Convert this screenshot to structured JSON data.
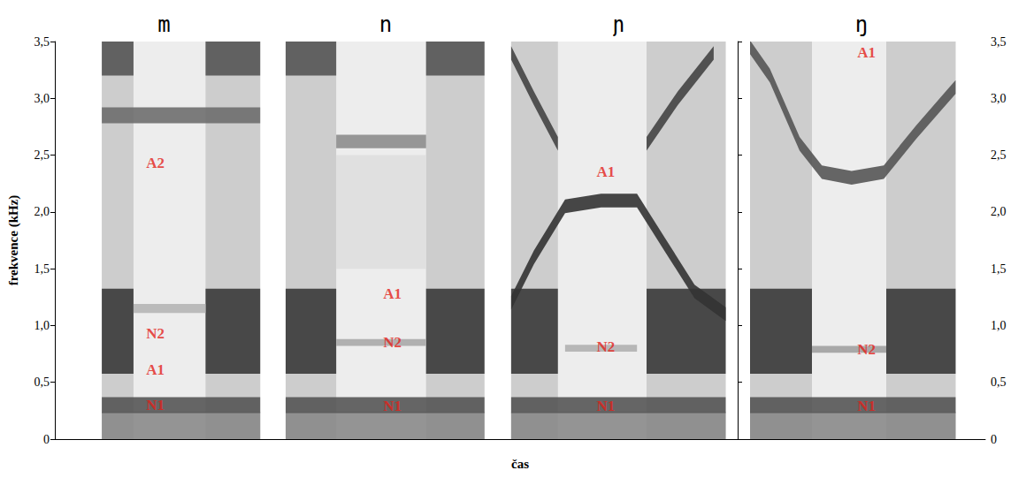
{
  "chart_data": {
    "type": "spectrogram",
    "ylabel": "frekvence (kHz)",
    "xlabel": "čas",
    "ylim": [
      0,
      3.5
    ],
    "yticks": [
      0,
      {
        "value": 0.5,
        "label": "0,5"
      },
      {
        "value": 1,
        "label": "1,0"
      },
      {
        "value": 1.5,
        "label": "1,5"
      },
      {
        "value": 2,
        "label": "2,0"
      },
      {
        "value": 2.5,
        "label": "2,5"
      },
      {
        "value": 3,
        "label": "3,0"
      },
      {
        "value": 3.5,
        "label": "3,5"
      }
    ],
    "xlim": [
      0,
      100
    ],
    "tick_labels": "y",
    "grid": false,
    "panels": [
      {
        "title": "m",
        "bands": [
          {
            "x": [
              21.5,
              94
            ],
            "values": [
              1.75,
              1.75
            ],
            "bandwidth": 3.5,
            "color": "#ebebeb"
          },
          {
            "x": [
              21.5,
              36
            ],
            "values": [
              1.75,
              1.75
            ],
            "bandwidth": 3.5,
            "color": "#c9c9c9"
          },
          {
            "x": [
              69,
              94
            ],
            "values": [
              1.75,
              1.75
            ],
            "bandwidth": 3.5,
            "color": "#c9c9c9"
          },
          {
            "x": [
              21.5,
              94
            ],
            "values": [
              0.12,
              0.12
            ],
            "bandwidth": 0.24,
            "color": "#8a8a8a"
          },
          {
            "x": [
              21.5,
              94
            ],
            "values": [
              0.3,
              0.3
            ],
            "bandwidth": 0.14,
            "color": "#555555"
          },
          {
            "x": [
              21.5,
              36
            ],
            "values": [
              0.95,
              0.95
            ],
            "bandwidth": 0.75,
            "color": "#3a3a3a"
          },
          {
            "x": [
              69,
              94
            ],
            "values": [
              0.95,
              0.95
            ],
            "bandwidth": 0.75,
            "color": "#3a3a3a"
          },
          {
            "x": [
              21.5,
              94
            ],
            "values": [
              2.85,
              2.85
            ],
            "bandwidth": 0.14,
            "color": "#6e6e6e"
          },
          {
            "x": [
              21.5,
              36
            ],
            "values": [
              3.35,
              3.35
            ],
            "bandwidth": 0.3,
            "color": "#555555"
          },
          {
            "x": [
              69,
              94
            ],
            "values": [
              3.35,
              3.35
            ],
            "bandwidth": 0.3,
            "color": "#555555"
          },
          {
            "x": [
              36,
              69
            ],
            "values": [
              1.15,
              1.15
            ],
            "bandwidth": 0.08,
            "color": "#b5b5b5"
          }
        ],
        "annotations": [
          {
            "text": "A2",
            "x": 46,
            "y": 2.43,
            "color": "#e32119"
          },
          {
            "text": "N2",
            "x": 46,
            "y": 0.93,
            "color": "#e32119"
          },
          {
            "text": "A1",
            "x": 46,
            "y": 0.61,
            "color": "#e32119"
          },
          {
            "text": "N1",
            "x": 46,
            "y": 0.3,
            "color": "#e32119"
          }
        ]
      },
      {
        "title": "n",
        "bands": [
          {
            "x": [
              5.5,
              94
            ],
            "values": [
              1.75,
              1.75
            ],
            "bandwidth": 3.5,
            "color": "#ebebeb"
          },
          {
            "x": [
              5.5,
              28
            ],
            "values": [
              1.75,
              1.75
            ],
            "bandwidth": 3.5,
            "color": "#c9c9c9"
          },
          {
            "x": [
              68,
              94
            ],
            "values": [
              1.75,
              1.75
            ],
            "bandwidth": 3.5,
            "color": "#c9c9c9"
          },
          {
            "x": [
              28,
              68
            ],
            "values": [
              2.0,
              2.0
            ],
            "bandwidth": 1.0,
            "color": "#dedede"
          },
          {
            "x": [
              5.5,
              94
            ],
            "values": [
              0.12,
              0.12
            ],
            "bandwidth": 0.24,
            "color": "#8a8a8a"
          },
          {
            "x": [
              5.5,
              94
            ],
            "values": [
              0.3,
              0.3
            ],
            "bandwidth": 0.14,
            "color": "#555555"
          },
          {
            "x": [
              5.5,
              28
            ],
            "values": [
              0.95,
              0.95
            ],
            "bandwidth": 0.75,
            "color": "#3a3a3a"
          },
          {
            "x": [
              68,
              94
            ],
            "values": [
              0.95,
              0.95
            ],
            "bandwidth": 0.75,
            "color": "#3a3a3a"
          },
          {
            "x": [
              5.5,
              28
            ],
            "values": [
              3.35,
              3.35
            ],
            "bandwidth": 0.3,
            "color": "#555555"
          },
          {
            "x": [
              68,
              94
            ],
            "values": [
              3.35,
              3.35
            ],
            "bandwidth": 0.3,
            "color": "#555555"
          },
          {
            "x": [
              28,
              68
            ],
            "values": [
              2.62,
              2.62
            ],
            "bandwidth": 0.12,
            "color": "#8c8c8c"
          },
          {
            "x": [
              28,
              68
            ],
            "values": [
              0.85,
              0.85
            ],
            "bandwidth": 0.06,
            "color": "#a8a8a8"
          }
        ],
        "annotations": [
          {
            "text": "A1",
            "x": 53,
            "y": 1.28,
            "color": "#e32119"
          },
          {
            "text": "N2",
            "x": 53,
            "y": 0.85,
            "color": "#e32119"
          },
          {
            "text": "N1",
            "x": 53,
            "y": 0.29,
            "color": "#e32119"
          }
        ]
      },
      {
        "title": "ɲ",
        "bands": [
          {
            "x": [
              5.5,
              95
            ],
            "values": [
              1.75,
              1.75
            ],
            "bandwidth": 3.5,
            "color": "#ebebeb"
          },
          {
            "x": [
              5.5,
              25
            ],
            "values": [
              1.75,
              1.75
            ],
            "bandwidth": 3.5,
            "color": "#c9c9c9"
          },
          {
            "x": [
              62,
              95
            ],
            "values": [
              1.75,
              1.75
            ],
            "bandwidth": 3.5,
            "color": "#c9c9c9"
          },
          {
            "x": [
              5.5,
              95
            ],
            "values": [
              0.12,
              0.12
            ],
            "bandwidth": 0.24,
            "color": "#8a8a8a"
          },
          {
            "x": [
              5.5,
              95
            ],
            "values": [
              0.3,
              0.3
            ],
            "bandwidth": 0.14,
            "color": "#555555"
          },
          {
            "x": [
              5.5,
              25
            ],
            "values": [
              0.95,
              0.95
            ],
            "bandwidth": 0.75,
            "color": "#3a3a3a"
          },
          {
            "x": [
              62,
              95
            ],
            "values": [
              0.95,
              0.95
            ],
            "bandwidth": 0.75,
            "color": "#3a3a3a"
          },
          {
            "x": [
              5.5,
              15,
              28,
              43,
              58,
              70,
              82,
              95
            ],
            "values": [
              1.2,
              1.6,
              2.05,
              2.1,
              2.1,
              1.7,
              1.3,
              1.1
            ],
            "bandwidth": 0.12,
            "color": "#333333"
          },
          {
            "x": [
              5.5,
              15,
              25
            ],
            "values": [
              3.4,
              3.0,
              2.6
            ],
            "bandwidth": 0.12,
            "color": "#444444"
          },
          {
            "x": [
              62,
              75,
              90
            ],
            "values": [
              2.6,
              3.0,
              3.4
            ],
            "bandwidth": 0.12,
            "color": "#444444"
          },
          {
            "x": [
              28,
              58
            ],
            "values": [
              0.8,
              0.8
            ],
            "bandwidth": 0.06,
            "color": "#b0b0b0"
          }
        ],
        "annotations": [
          {
            "text": "A1",
            "x": 45,
            "y": 2.35,
            "color": "#e32119"
          },
          {
            "text": "N2",
            "x": 45,
            "y": 0.81,
            "color": "#e32119"
          },
          {
            "text": "N1",
            "x": 45,
            "y": 0.29,
            "color": "#e32119"
          }
        ]
      },
      {
        "title": "ŋ",
        "bands": [
          {
            "x": [
              5,
              88
            ],
            "values": [
              1.75,
              1.75
            ],
            "bandwidth": 3.5,
            "color": "#ebebeb"
          },
          {
            "x": [
              5,
              30
            ],
            "values": [
              1.75,
              1.75
            ],
            "bandwidth": 3.5,
            "color": "#c9c9c9"
          },
          {
            "x": [
              60,
              88
            ],
            "values": [
              1.75,
              1.75
            ],
            "bandwidth": 3.5,
            "color": "#c9c9c9"
          },
          {
            "x": [
              5,
              88
            ],
            "values": [
              0.12,
              0.12
            ],
            "bandwidth": 0.24,
            "color": "#8a8a8a"
          },
          {
            "x": [
              5,
              88
            ],
            "values": [
              0.3,
              0.3
            ],
            "bandwidth": 0.14,
            "color": "#555555"
          },
          {
            "x": [
              5,
              30
            ],
            "values": [
              0.95,
              0.95
            ],
            "bandwidth": 0.75,
            "color": "#3a3a3a"
          },
          {
            "x": [
              60,
              88
            ],
            "values": [
              0.95,
              0.95
            ],
            "bandwidth": 0.75,
            "color": "#3a3a3a"
          },
          {
            "x": [
              5,
              13,
              25,
              34,
              46,
              59,
              72,
              84,
              88
            ],
            "values": [
              3.45,
              3.2,
              2.6,
              2.35,
              2.3,
              2.35,
              2.7,
              3.0,
              3.1
            ],
            "bandwidth": 0.12,
            "color": "#555555"
          },
          {
            "x": [
              30,
              60
            ],
            "values": [
              0.79,
              0.79
            ],
            "bandwidth": 0.06,
            "color": "#a0a0a0"
          }
        ],
        "annotations": [
          {
            "text": "A1",
            "x": 52,
            "y": 3.4,
            "color": "#e32119"
          },
          {
            "text": "N2",
            "x": 52,
            "y": 0.79,
            "color": "#e32119"
          },
          {
            "text": "N1",
            "x": 52,
            "y": 0.29,
            "color": "#e32119"
          }
        ]
      }
    ]
  }
}
